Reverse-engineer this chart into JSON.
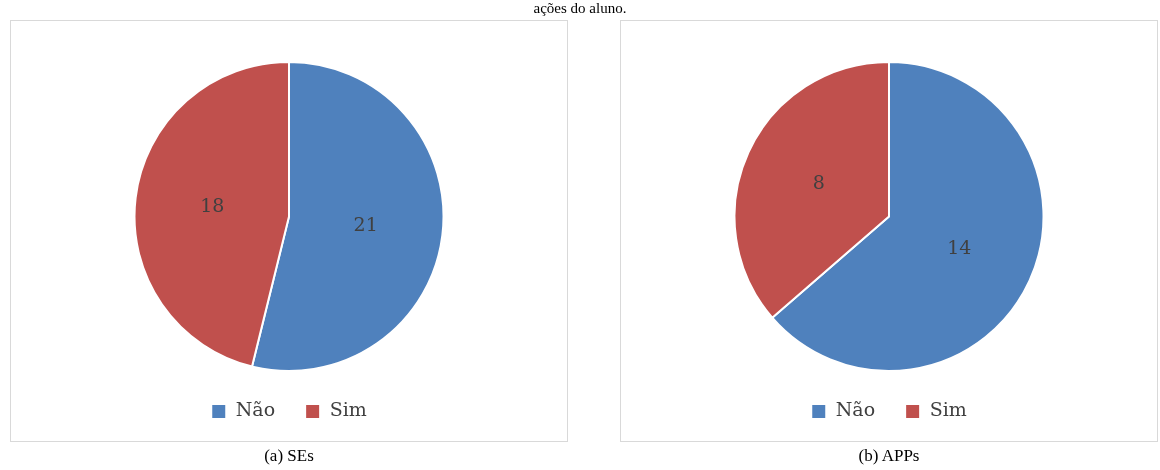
{
  "chart_data": [
    {
      "type": "pie",
      "categories": [
        "Não",
        "Sim"
      ],
      "values": [
        21,
        18
      ],
      "colors": [
        "#4f81bd",
        "#c0504d"
      ],
      "data_labels": true,
      "legend": "bottom",
      "annotations": [
        "ações do aluno.",
        "(a) SEs"
      ]
    },
    {
      "type": "pie",
      "categories": [
        "Não",
        "Sim"
      ],
      "values": [
        14,
        8
      ],
      "colors": [
        "#4f81bd",
        "#c0504d"
      ],
      "data_labels": true,
      "legend": "bottom",
      "annotations": [
        "(b) APPs"
      ]
    }
  ]
}
